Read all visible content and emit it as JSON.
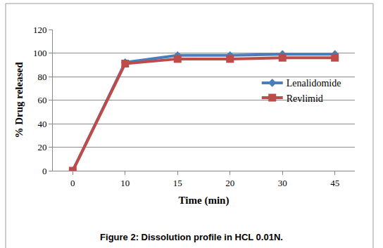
{
  "chart_data": {
    "type": "line",
    "title": "Figure 2: Dissolution profile in HCL 0.01N.",
    "x_label": "Time (min)",
    "y_label": "% Drug released",
    "categories": [
      "0",
      "10",
      "15",
      "20",
      "30",
      "45"
    ],
    "series": [
      {
        "name": "Lenalidomide",
        "color": "#4a7ebb",
        "marker": "diamond",
        "values": [
          0,
          92,
          98,
          98,
          99,
          99
        ]
      },
      {
        "name": "Revlimid",
        "color": "#be4b48",
        "marker": "square",
        "values": [
          0,
          91,
          95,
          95,
          96,
          96
        ]
      }
    ],
    "ylim": [
      0,
      120
    ],
    "yticks": [
      0,
      20,
      40,
      60,
      80,
      100,
      120
    ],
    "grid": true,
    "legend": "right"
  }
}
